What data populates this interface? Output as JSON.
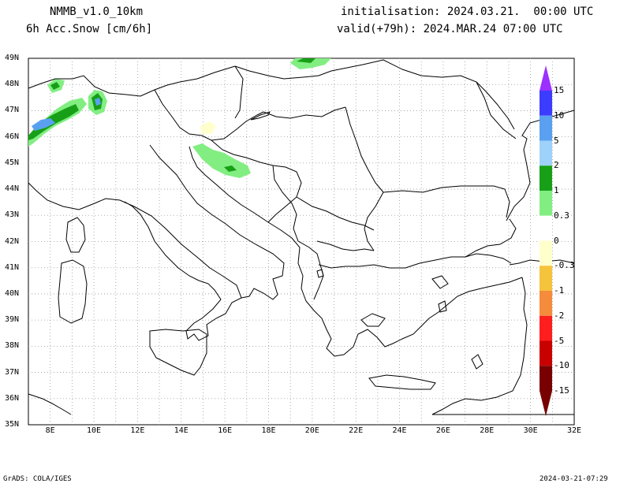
{
  "header": {
    "model": "NMMB_v1.0_10km",
    "field": "6h Acc.Snow [cm/6h]",
    "init": "initialisation: 2024.03.21.  00:00 UTC",
    "valid": "valid(+79h): 2024.MAR.24 07:00 UTC"
  },
  "map": {
    "lon_range": [
      7,
      32
    ],
    "lat_range": [
      35,
      49
    ],
    "lat_labels": [
      "49N",
      "48N",
      "47N",
      "46N",
      "45N",
      "44N",
      "43N",
      "42N",
      "41N",
      "40N",
      "39N",
      "38N",
      "37N",
      "36N",
      "35N"
    ],
    "lon_labels": [
      "8E",
      "10E",
      "12E",
      "14E",
      "16E",
      "18E",
      "20E",
      "22E",
      "24E",
      "26E",
      "28E",
      "30E",
      "32E"
    ],
    "grid": true
  },
  "colorbar": {
    "labels": [
      "15",
      "10",
      "5",
      "2",
      "1",
      "0.3",
      "0",
      "-0.3",
      "-1",
      "-2",
      "-5",
      "-10",
      "-15"
    ],
    "colors": [
      "#9b30ff",
      "#3c3cff",
      "#5aa0f0",
      "#9fd2fa",
      "#17a017",
      "#82ee82",
      "#ffffff",
      "#ffffcc",
      "#f5c33c",
      "#f58c3c",
      "#ff1e1e",
      "#c80000",
      "#780000"
    ]
  },
  "footer": {
    "left": "GrADS: COLA/IGES",
    "right": "2024-03-21-07:29"
  }
}
